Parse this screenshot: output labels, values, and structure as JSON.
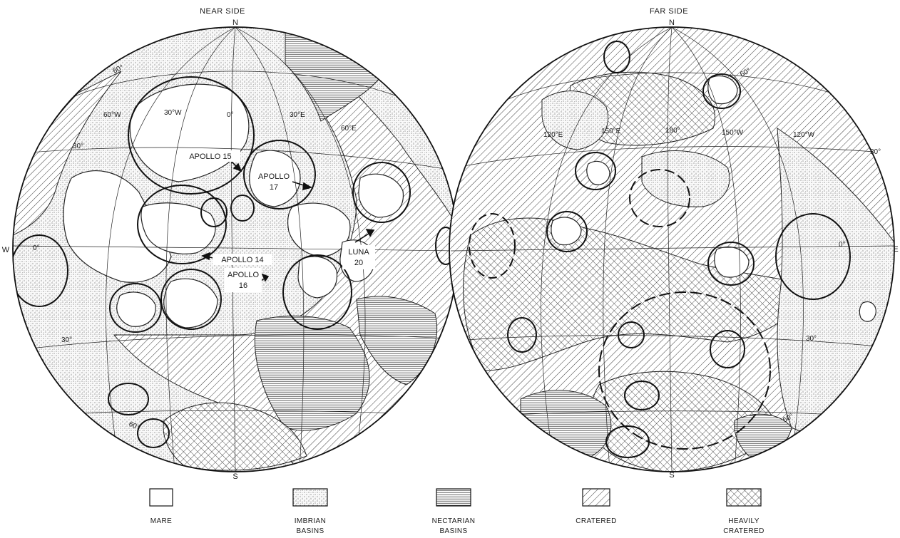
{
  "near_side": {
    "title": "NEAR SIDE",
    "north": "N",
    "south": "S",
    "west": "W",
    "grid_labels": [
      "60°",
      "60°W",
      "30°W",
      "0°",
      "30°E",
      "60°E",
      "30°",
      "0°",
      "30°",
      "60°"
    ],
    "sites": [
      {
        "lines": [
          "APOLLO 15"
        ]
      },
      {
        "lines": [
          "APOLLO",
          "17"
        ]
      },
      {
        "lines": [
          "APOLLO 14"
        ]
      },
      {
        "lines": [
          "APOLLO",
          "16"
        ]
      },
      {
        "lines": [
          "LUNA",
          "20"
        ]
      }
    ]
  },
  "far_side": {
    "title": "FAR SIDE",
    "north": "N",
    "south": "S",
    "east": "E",
    "grid_labels": [
      "60°",
      "120°E",
      "150°E",
      "180°",
      "150°W",
      "120°W",
      "30°",
      "0°",
      "30°",
      "60°"
    ]
  },
  "legend": [
    {
      "key": "mare",
      "label_lines": [
        "MARE"
      ]
    },
    {
      "key": "imbrian",
      "label_lines": [
        "IMBRIAN",
        "BASINS"
      ]
    },
    {
      "key": "nectarian",
      "label_lines": [
        "NECTARIAN",
        "BASINS"
      ]
    },
    {
      "key": "cratered",
      "label_lines": [
        "CRATERED"
      ]
    },
    {
      "key": "heavily",
      "label_lines": [
        "HEAVILY",
        "CRATERED"
      ]
    }
  ]
}
